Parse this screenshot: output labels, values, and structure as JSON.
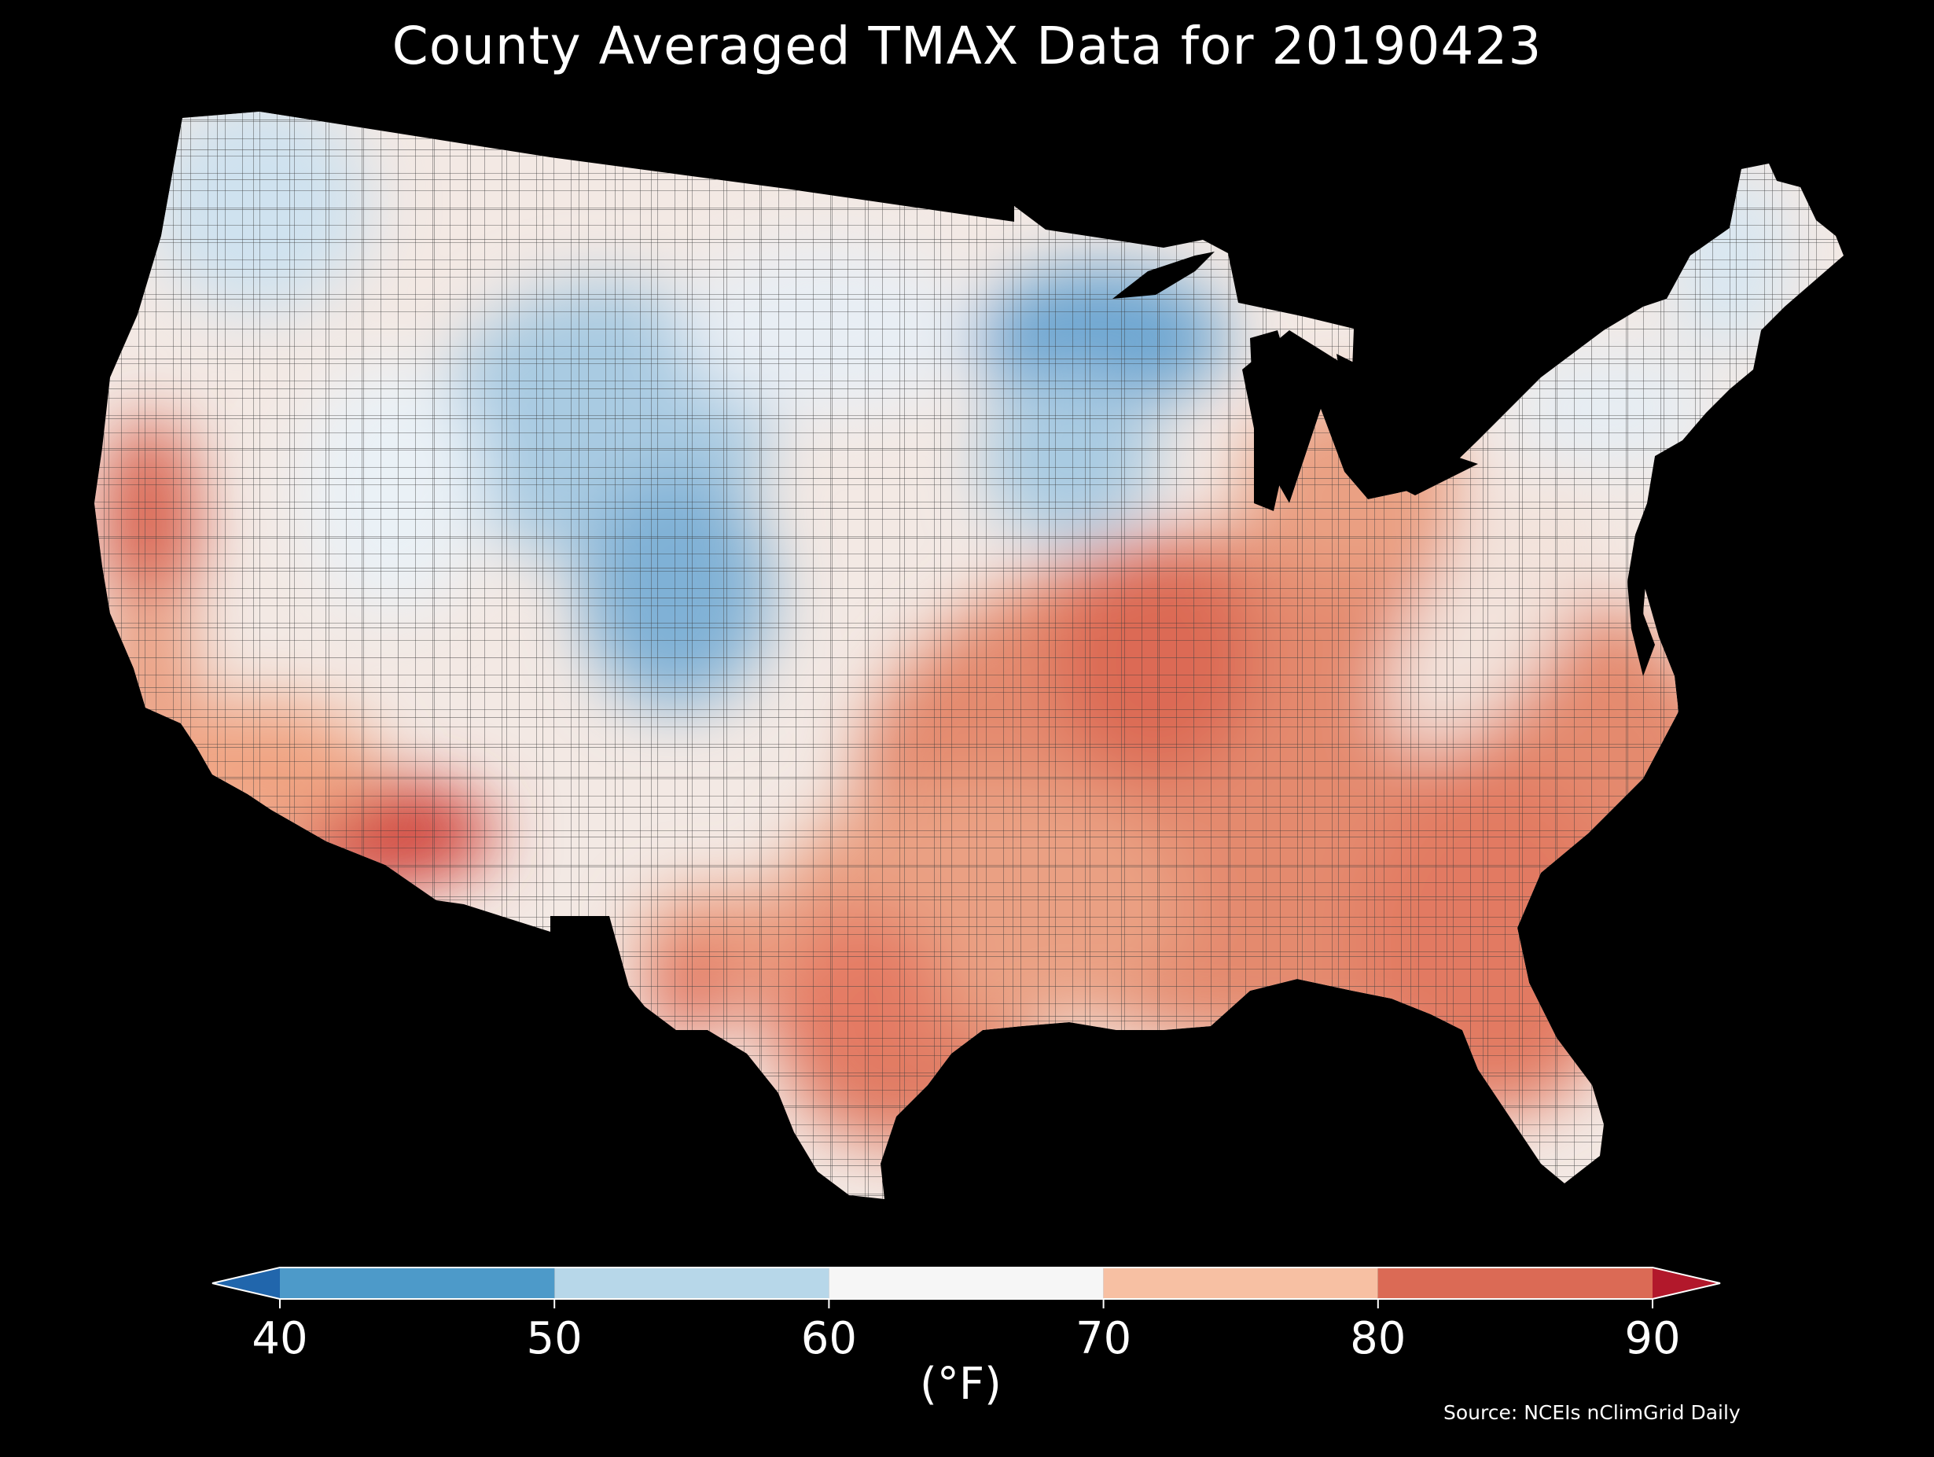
{
  "title": "County Averaged TMAX Data for 20190423",
  "source": "Source: NCEIs nClimGrid Daily",
  "colorbar": {
    "unit": "(°F)",
    "ticks": [
      "40",
      "50",
      "60",
      "70",
      "80",
      "90"
    ],
    "bins": [
      {
        "range": "<40",
        "color": "#2166ac"
      },
      {
        "range": "40-50",
        "color": "#4d9ac9"
      },
      {
        "range": "50-60",
        "color": "#b7d7e9"
      },
      {
        "range": "60-70",
        "color": "#f6f6f6"
      },
      {
        "range": "70-80",
        "color": "#f7c0a3"
      },
      {
        "range": "80-90",
        "color": "#db6a55"
      },
      {
        "range": ">90",
        "color": "#b2182b"
      }
    ]
  },
  "map": {
    "region": "Contiguous United States",
    "variable": "TMAX",
    "date": "20190423",
    "background": "#000000",
    "regions": [
      {
        "name": "Pacific Northwest",
        "tmax_f_range": "50-60"
      },
      {
        "name": "Northern Rockies / Wyoming / Colorado",
        "tmax_f_range": "40-60"
      },
      {
        "name": "Upper Midwest / Wisconsin",
        "tmax_f_range": "40-50"
      },
      {
        "name": "Northern Plains",
        "tmax_f_range": "50-70"
      },
      {
        "name": "New England / Upstate NY",
        "tmax_f_range": "50-70"
      },
      {
        "name": "Central California valley",
        "tmax_f_range": "80-90"
      },
      {
        "name": "Southern Arizona",
        "tmax_f_range": ">80"
      },
      {
        "name": "Missouri / Illinois",
        "tmax_f_range": "80-90"
      },
      {
        "name": "Southeast / Gulf Coast",
        "tmax_f_range": "80-90"
      },
      {
        "name": "South Texas",
        "tmax_f_range": "80-90"
      },
      {
        "name": "Florida",
        "tmax_f_range": "80-90"
      },
      {
        "name": "Appalachians",
        "tmax_f_range": "60-70"
      }
    ]
  }
}
